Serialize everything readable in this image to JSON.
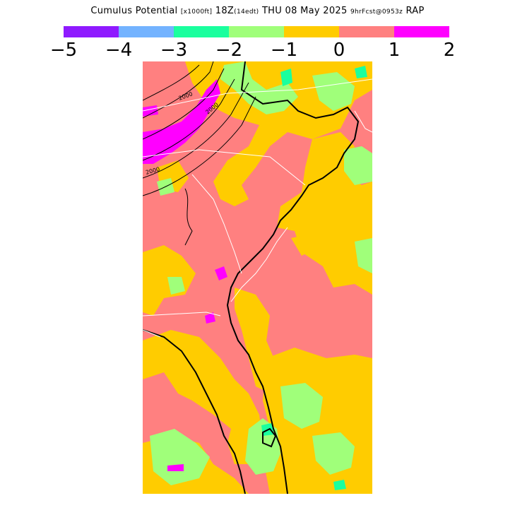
{
  "title": {
    "main": "Cumulus Potential",
    "units": "[x1000ft]",
    "valid": "18Z",
    "local": "(14edt)",
    "date": "THU 08 May 2025",
    "forecast": "9hrFcst@0953z",
    "model": "RAP"
  },
  "colorbar": {
    "colors": [
      "#8f1aff",
      "#73b3ff",
      "#1aff9e",
      "#a0ff7a",
      "#ffcc00",
      "#ff8080",
      "#ff00ff"
    ],
    "ticks": [
      "−5",
      "−4",
      "−3",
      "−2",
      "−1",
      "0",
      "1",
      "2"
    ]
  },
  "map": {
    "contour_label": "2000",
    "icons": [
      "contour-lines",
      "coastline",
      "state-borders"
    ]
  }
}
